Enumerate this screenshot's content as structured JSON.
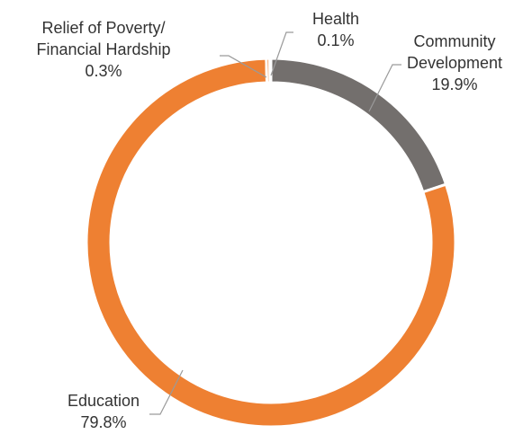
{
  "chart_data": {
    "type": "pie",
    "donut": true,
    "legend": "none",
    "slices": [
      {
        "label_lines": [
          "Community",
          "Development"
        ],
        "value": 19.9,
        "value_label": "19.9%",
        "color": "#736f6d"
      },
      {
        "label_lines": [
          "Education"
        ],
        "value": 79.8,
        "value_label": "79.8%",
        "color": "#ee8032"
      },
      {
        "label_lines": [
          "Relief of Poverty/",
          "Financial Hardship"
        ],
        "value": 0.3,
        "value_label": "0.3%",
        "color": "#ee8032"
      },
      {
        "label_lines": [
          "Health"
        ],
        "value": 0.1,
        "value_label": "0.1%",
        "color": "#736f6d"
      }
    ]
  }
}
